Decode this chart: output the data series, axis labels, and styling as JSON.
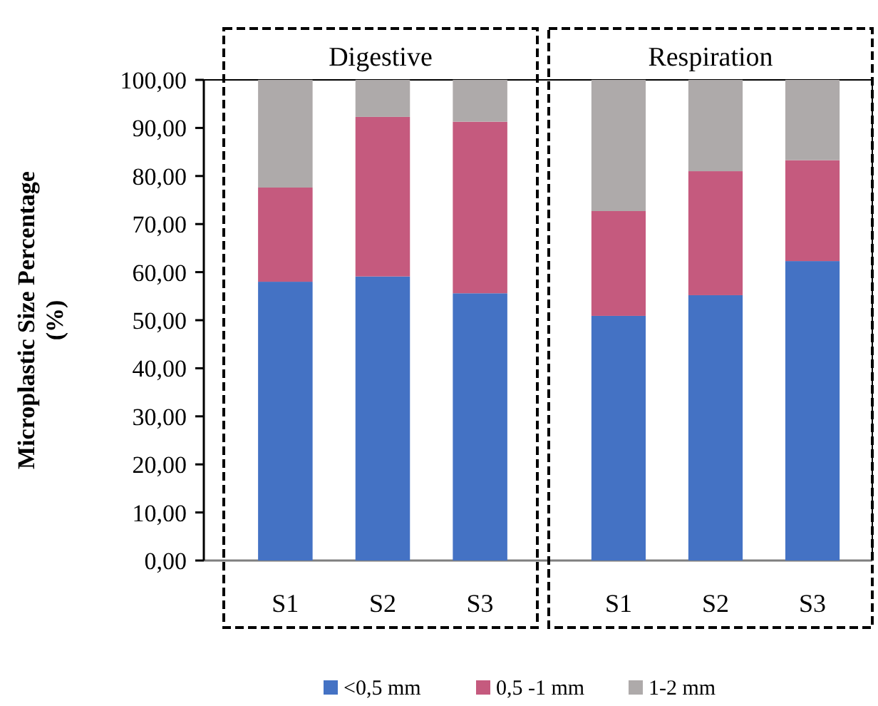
{
  "chart_data": [
    {
      "type": "bar",
      "title": "Digestive",
      "ylabel": "Microplastic Size Percentage (%)",
      "categories": [
        "S1",
        "S2",
        "S3"
      ],
      "stacked": true,
      "legend": "bottom",
      "ylim": [
        0,
        100
      ],
      "yticks": [
        {
          "value": 0,
          "label": "0,00"
        },
        {
          "value": 10,
          "label": "10,00"
        },
        {
          "value": 20,
          "label": "20,00"
        },
        {
          "value": 30,
          "label": "30,00"
        },
        {
          "value": 40,
          "label": "40,00"
        },
        {
          "value": 50,
          "label": "50,00"
        },
        {
          "value": 60,
          "label": "60,00"
        },
        {
          "value": 70,
          "label": "70,00"
        },
        {
          "value": 80,
          "label": "80,00"
        },
        {
          "value": 90,
          "label": "90,00"
        },
        {
          "value": 100,
          "label": "100,00"
        }
      ],
      "series": [
        {
          "name": "<0,5 mm",
          "color": "#4472c4",
          "values": [
            58.0,
            59.1,
            55.6
          ]
        },
        {
          "name": "0,5 -1 mm",
          "color": "#c55a7e",
          "values": [
            19.6,
            33.2,
            35.7
          ]
        },
        {
          "name": "1-2 mm",
          "color": "#aeaaaa",
          "values": [
            22.4,
            7.7,
            8.7
          ]
        }
      ]
    },
    {
      "type": "bar",
      "title": "Respiration",
      "categories": [
        "S1",
        "S2",
        "S3"
      ],
      "stacked": true,
      "tick_labels": "x",
      "ylim": [
        0,
        100
      ],
      "series": [
        {
          "color": "#4472c4",
          "values": [
            50.9,
            55.2,
            62.3
          ]
        },
        {
          "color": "#c55a7e",
          "values": [
            21.8,
            25.8,
            21.0
          ]
        },
        {
          "color": "#aeaaaa",
          "values": [
            27.3,
            19.0,
            16.7
          ]
        }
      ]
    }
  ]
}
